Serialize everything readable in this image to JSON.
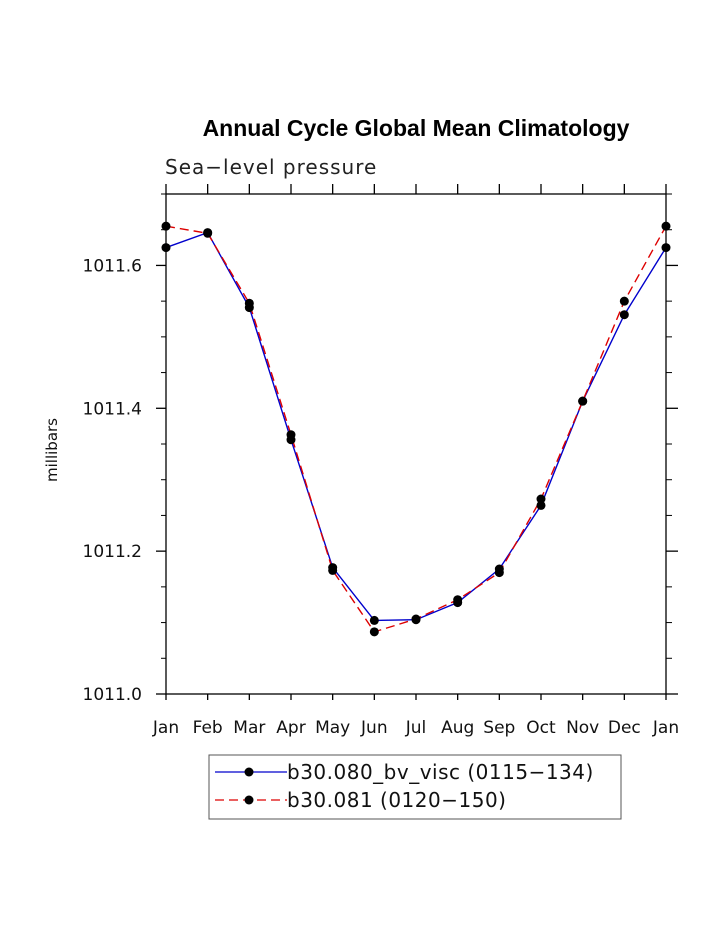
{
  "chart_data": {
    "type": "line",
    "title": "Annual Cycle Global Mean Climatology",
    "subtitle": "Sea−level pressure",
    "xlabel": "",
    "ylabel": "millibars",
    "categories": [
      "Jan",
      "Feb",
      "Mar",
      "Apr",
      "May",
      "Jun",
      "Jul",
      "Aug",
      "Sep",
      "Oct",
      "Nov",
      "Dec",
      "Jan"
    ],
    "ylim": [
      1011.0,
      1011.7
    ],
    "yticks": [
      1011.0,
      1011.2,
      1011.4,
      1011.6
    ],
    "ytick_labels": [
      "1011.0",
      "1011.2",
      "1011.4",
      "1011.6"
    ],
    "series": [
      {
        "name": "b30.080_bv_visc (0115−134)",
        "color": "#0000cc",
        "dash": "solid",
        "values": [
          1011.625,
          1011.646,
          1011.541,
          1011.356,
          1011.177,
          1011.103,
          1011.104,
          1011.128,
          1011.175,
          1011.264,
          1011.41,
          1011.531,
          1011.625
        ]
      },
      {
        "name": "b30.081 (0120−150)",
        "color": "#dd0000",
        "dash": "dashed",
        "values": [
          1011.655,
          1011.645,
          1011.547,
          1011.363,
          1011.173,
          1011.087,
          1011.105,
          1011.132,
          1011.17,
          1011.273,
          1011.41,
          1011.55,
          1011.655
        ]
      }
    ],
    "grid": false,
    "legend_position": "bottom"
  }
}
